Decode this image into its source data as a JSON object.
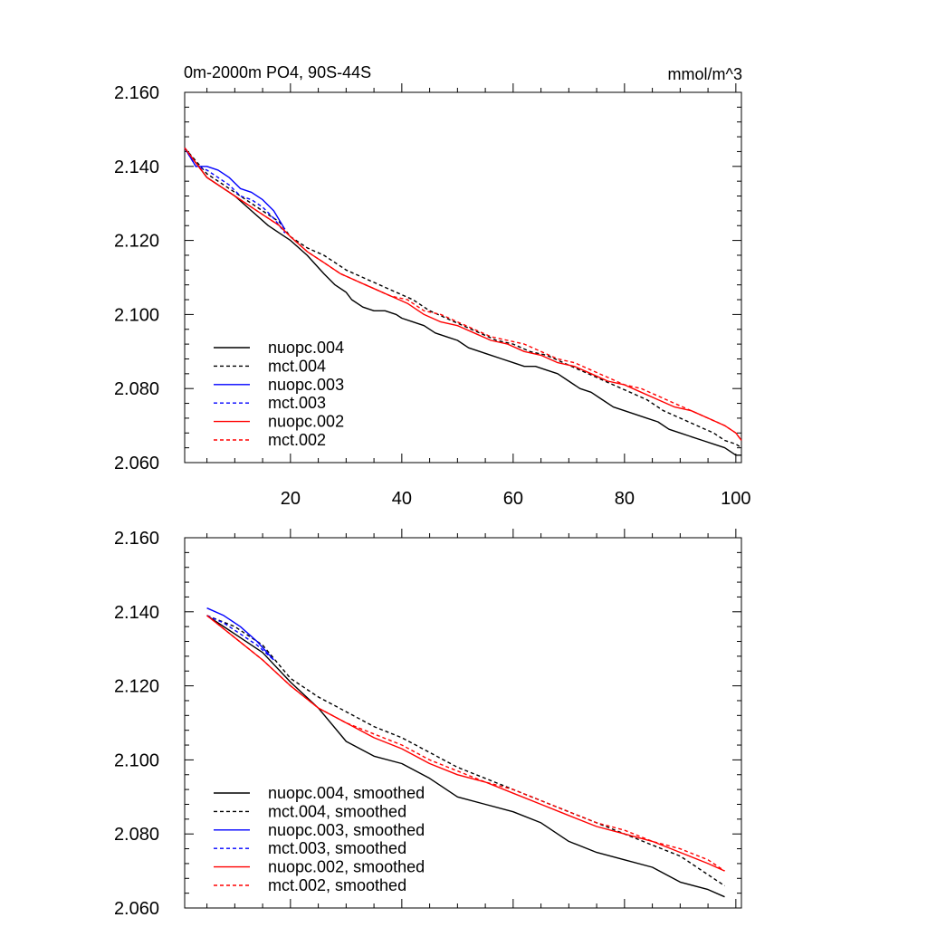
{
  "chart_data": [
    {
      "type": "line",
      "title": "0m-2000m PO4, 90S-44S",
      "units": "mmol/m^3",
      "xlim": [
        1,
        101
      ],
      "ylim": [
        2.06,
        2.16
      ],
      "y_ticks": [
        "2.160",
        "2.140",
        "2.120",
        "2.100",
        "2.080",
        "2.060"
      ],
      "x_ticks": [
        "20",
        "40",
        "60",
        "80",
        "100"
      ],
      "legend_position": "bottom-left",
      "series": [
        {
          "name": "nuopc.004",
          "color": "#000000",
          "dash": false,
          "x": [
            1,
            5,
            10,
            13,
            16,
            18,
            20,
            23,
            26,
            28,
            30,
            31,
            33,
            35,
            37,
            39,
            40,
            42,
            44,
            46,
            48,
            50,
            52,
            54,
            56,
            58,
            60,
            62,
            64,
            66,
            68,
            70,
            72,
            74,
            76,
            78,
            80,
            82,
            84,
            86,
            88,
            90,
            92,
            94,
            96,
            98,
            100,
            101
          ],
          "y": [
            2.145,
            2.137,
            2.132,
            2.128,
            2.124,
            2.122,
            2.12,
            2.116,
            2.111,
            2.108,
            2.106,
            2.104,
            2.102,
            2.101,
            2.101,
            2.1,
            2.099,
            2.098,
            2.097,
            2.095,
            2.094,
            2.093,
            2.091,
            2.09,
            2.089,
            2.088,
            2.087,
            2.086,
            2.086,
            2.085,
            2.084,
            2.082,
            2.08,
            2.079,
            2.077,
            2.075,
            2.074,
            2.073,
            2.072,
            2.071,
            2.069,
            2.068,
            2.067,
            2.066,
            2.065,
            2.064,
            2.062,
            2.062
          ]
        },
        {
          "name": "mct.004",
          "color": "#000000",
          "dash": true,
          "x": [
            1,
            5,
            10,
            14,
            18,
            20,
            23,
            26,
            28,
            30,
            33,
            36,
            39,
            42,
            45,
            48,
            51,
            54,
            57,
            60,
            63,
            66,
            69,
            72,
            75,
            78,
            81,
            84,
            87,
            90,
            93,
            96,
            98,
            100,
            101
          ],
          "y": [
            2.145,
            2.138,
            2.133,
            2.129,
            2.125,
            2.121,
            2.118,
            2.116,
            2.114,
            2.112,
            2.11,
            2.108,
            2.106,
            2.104,
            2.101,
            2.099,
            2.097,
            2.095,
            2.093,
            2.092,
            2.09,
            2.089,
            2.087,
            2.085,
            2.083,
            2.081,
            2.079,
            2.077,
            2.074,
            2.072,
            2.07,
            2.068,
            2.066,
            2.065,
            2.064
          ]
        },
        {
          "name": "nuopc.003",
          "color": "#0000ff",
          "dash": false,
          "x": [
            1,
            3,
            5,
            7,
            9,
            11,
            13,
            15,
            17,
            19
          ],
          "y": [
            2.145,
            2.14,
            2.14,
            2.139,
            2.137,
            2.134,
            2.133,
            2.131,
            2.128,
            2.123
          ]
        },
        {
          "name": "mct.003",
          "color": "#0000ff",
          "dash": true,
          "x": [
            1,
            3,
            5,
            7,
            9,
            11,
            13,
            15,
            17,
            19
          ],
          "y": [
            2.145,
            2.14,
            2.139,
            2.137,
            2.135,
            2.132,
            2.131,
            2.129,
            2.126,
            2.122
          ]
        },
        {
          "name": "nuopc.002",
          "color": "#ff0000",
          "dash": false,
          "x": [
            1,
            5,
            10,
            14,
            18,
            20,
            23,
            26,
            29,
            32,
            35,
            38,
            41,
            44,
            47,
            50,
            53,
            56,
            59,
            62,
            65,
            68,
            71,
            74,
            77,
            80,
            83,
            86,
            89,
            92,
            95,
            98,
            100,
            101
          ],
          "y": [
            2.145,
            2.137,
            2.132,
            2.128,
            2.124,
            2.121,
            2.117,
            2.114,
            2.111,
            2.109,
            2.107,
            2.105,
            2.103,
            2.1,
            2.098,
            2.097,
            2.095,
            2.093,
            2.092,
            2.09,
            2.089,
            2.087,
            2.086,
            2.084,
            2.082,
            2.081,
            2.079,
            2.077,
            2.075,
            2.074,
            2.072,
            2.07,
            2.068,
            2.066
          ]
        },
        {
          "name": "mct.002",
          "color": "#ff0000",
          "dash": true,
          "x": [
            1,
            5,
            10,
            14,
            18,
            20,
            23,
            26,
            29,
            32,
            35,
            38,
            41,
            44,
            47,
            50,
            53,
            56,
            59,
            62,
            65,
            68,
            71,
            74,
            77,
            80,
            83,
            86,
            89,
            92,
            95,
            98,
            100,
            101
          ],
          "y": [
            2.145,
            2.137,
            2.132,
            2.128,
            2.124,
            2.121,
            2.117,
            2.114,
            2.111,
            2.109,
            2.107,
            2.105,
            2.104,
            2.101,
            2.1,
            2.098,
            2.096,
            2.094,
            2.093,
            2.092,
            2.09,
            2.088,
            2.087,
            2.085,
            2.083,
            2.081,
            2.08,
            2.078,
            2.076,
            2.074,
            2.072,
            2.07,
            2.068,
            2.066
          ]
        }
      ]
    },
    {
      "type": "line",
      "title": "",
      "xlim": [
        1,
        101
      ],
      "ylim": [
        2.06,
        2.16
      ],
      "y_ticks": [
        "2.160",
        "2.140",
        "2.120",
        "2.100",
        "2.080",
        "2.060"
      ],
      "x_ticks": [],
      "legend_position": "bottom-left",
      "series": [
        {
          "name": "nuopc.004, smoothed",
          "color": "#000000",
          "dash": false,
          "x": [
            5,
            10,
            15,
            20,
            25,
            30,
            35,
            40,
            45,
            50,
            55,
            60,
            65,
            70,
            75,
            80,
            85,
            90,
            95,
            98
          ],
          "y": [
            2.139,
            2.134,
            2.129,
            2.121,
            2.114,
            2.105,
            2.101,
            2.099,
            2.095,
            2.09,
            2.088,
            2.086,
            2.083,
            2.078,
            2.075,
            2.073,
            2.071,
            2.067,
            2.065,
            2.063
          ]
        },
        {
          "name": "mct.004, smoothed",
          "color": "#000000",
          "dash": true,
          "x": [
            5,
            10,
            15,
            20,
            25,
            30,
            35,
            40,
            45,
            50,
            55,
            60,
            65,
            70,
            75,
            80,
            85,
            90,
            95,
            98
          ],
          "y": [
            2.139,
            2.136,
            2.131,
            2.122,
            2.117,
            2.113,
            2.109,
            2.106,
            2.102,
            2.098,
            2.095,
            2.092,
            2.089,
            2.086,
            2.083,
            2.08,
            2.077,
            2.074,
            2.069,
            2.066
          ]
        },
        {
          "name": "nuopc.003, smoothed",
          "color": "#0000ff",
          "dash": false,
          "x": [
            5,
            8,
            11,
            14,
            17
          ],
          "y": [
            2.141,
            2.139,
            2.136,
            2.132,
            2.127
          ]
        },
        {
          "name": "mct.003, smoothed",
          "color": "#0000ff",
          "dash": true,
          "x": [
            5,
            8,
            11,
            14,
            17
          ],
          "y": [
            2.139,
            2.137,
            2.134,
            2.131,
            2.127
          ]
        },
        {
          "name": "nuopc.002, smoothed",
          "color": "#ff0000",
          "dash": false,
          "x": [
            5,
            10,
            15,
            20,
            25,
            30,
            35,
            40,
            45,
            50,
            55,
            60,
            65,
            70,
            75,
            80,
            85,
            90,
            95,
            98
          ],
          "y": [
            2.139,
            2.133,
            2.127,
            2.12,
            2.114,
            2.11,
            2.106,
            2.103,
            2.099,
            2.096,
            2.094,
            2.091,
            2.088,
            2.085,
            2.082,
            2.08,
            2.078,
            2.075,
            2.072,
            2.07
          ]
        },
        {
          "name": "mct.002, smoothed",
          "color": "#ff0000",
          "dash": true,
          "x": [
            5,
            10,
            15,
            20,
            25,
            30,
            35,
            40,
            45,
            50,
            55,
            60,
            65,
            70,
            75,
            80,
            85,
            90,
            95,
            98
          ],
          "y": [
            2.139,
            2.133,
            2.127,
            2.12,
            2.114,
            2.11,
            2.107,
            2.104,
            2.1,
            2.097,
            2.094,
            2.092,
            2.089,
            2.086,
            2.083,
            2.081,
            2.078,
            2.076,
            2.073,
            2.07
          ]
        }
      ]
    }
  ]
}
